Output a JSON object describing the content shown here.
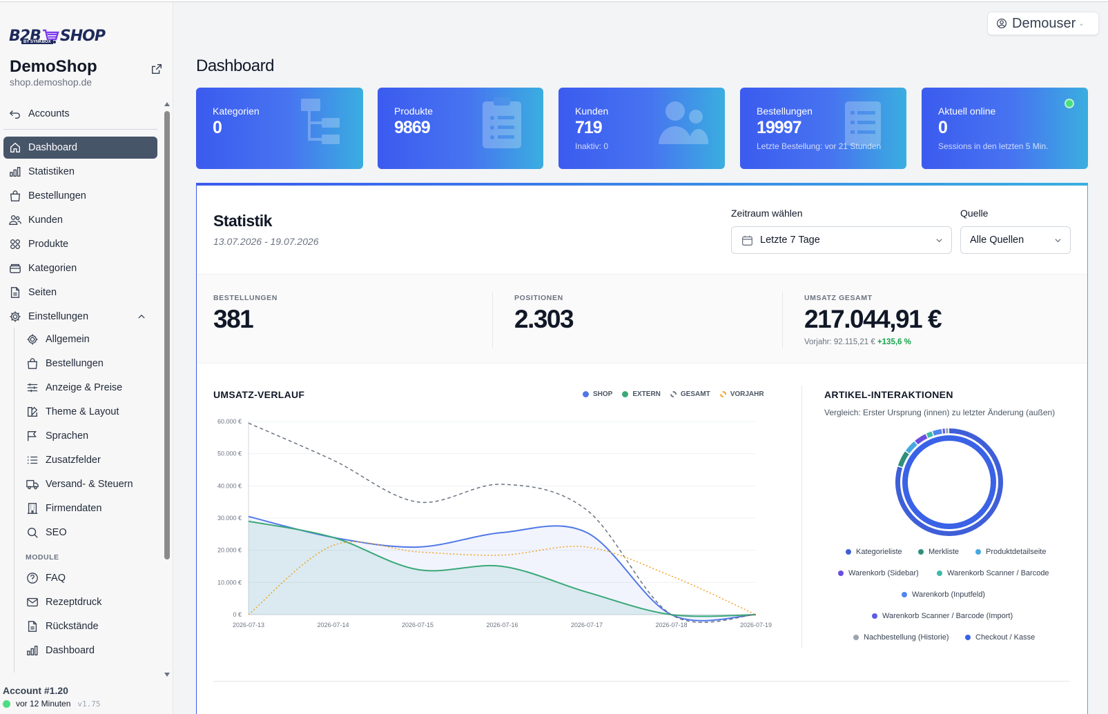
{
  "brand": {
    "logo_left": "B2B",
    "logo_right": "SHOP",
    "logo_sub": "BY SYNKBOX"
  },
  "shop": {
    "name": "DemoShop",
    "url": "shop.demoshop.de"
  },
  "sidebar": {
    "accounts": "Accounts",
    "items": [
      {
        "label": "Dashboard",
        "icon": "home-icon"
      },
      {
        "label": "Statistiken",
        "icon": "bar-chart-icon"
      },
      {
        "label": "Bestellungen",
        "icon": "shopping-bag-icon"
      },
      {
        "label": "Kunden",
        "icon": "users-icon"
      },
      {
        "label": "Produkte",
        "icon": "grid-icon"
      },
      {
        "label": "Kategorien",
        "icon": "folder-icon"
      },
      {
        "label": "Seiten",
        "icon": "document-icon"
      },
      {
        "label": "Einstellungen",
        "icon": "cog-icon"
      }
    ],
    "sub_items": [
      {
        "label": "Allgemein",
        "icon": "cog-icon"
      },
      {
        "label": "Bestellungen",
        "icon": "shopping-bag-icon"
      },
      {
        "label": "Anzeige & Preise",
        "icon": "sliders-icon"
      },
      {
        "label": "Theme & Layout",
        "icon": "palette-icon"
      },
      {
        "label": "Sprachen",
        "icon": "flag-icon"
      },
      {
        "label": "Zusatzfelder",
        "icon": "list-icon"
      },
      {
        "label": "Versand- & Steuern",
        "icon": "truck-icon"
      },
      {
        "label": "Firmendaten",
        "icon": "building-icon"
      },
      {
        "label": "SEO",
        "icon": "search-icon"
      }
    ],
    "module_label": "MODULE",
    "module_items": [
      {
        "label": "FAQ",
        "icon": "question-icon"
      },
      {
        "label": "Rezeptdruck",
        "icon": "mail-icon"
      },
      {
        "label": "Rückstände",
        "icon": "document-icon"
      },
      {
        "label": "Dashboard",
        "icon": "bar-chart-icon"
      }
    ],
    "account": "Account #1.20",
    "account_status": "vor 12 Minuten",
    "version": "v1.75"
  },
  "header": {
    "user": "Demouser",
    "page_title": "Dashboard"
  },
  "kpis": [
    {
      "label": "Kategorien",
      "value": "0",
      "sub": "",
      "icon": "hierarchy-icon"
    },
    {
      "label": "Produkte",
      "value": "9869",
      "sub": "",
      "icon": "clipboard-icon"
    },
    {
      "label": "Kunden",
      "value": "719",
      "sub": "Inaktiv: 0",
      "icon": "users-icon"
    },
    {
      "label": "Bestellungen",
      "value": "19997",
      "sub": "Letzte Bestellung: vor 21 Stunden",
      "icon": "list-icon"
    },
    {
      "label": "Aktuell online",
      "value": "0",
      "sub": "Sessions in den letzten 5 Min.",
      "icon": "online-dot"
    }
  ],
  "statistik": {
    "title": "Statistik",
    "range": "13.07.2026 - 19.07.2026",
    "zeitraum_label": "Zeitraum wählen",
    "zeitraum_value": "Letzte 7 Tage",
    "quelle_label": "Quelle",
    "quelle_value": "Alle Quellen"
  },
  "metrics": [
    {
      "label": "BESTELLUNGEN",
      "value": "381"
    },
    {
      "label": "POSITIONEN",
      "value": "2.303"
    },
    {
      "label": "UMSATZ GESAMT",
      "value": "217.044,91 €",
      "sub_prefix": "Vorjahr: 92.115,21 €",
      "sub_change": "+135,6 %"
    }
  ],
  "umsatz_chart": {
    "title": "UMSATZ-VERLAUF",
    "legend": [
      {
        "name": "SHOP",
        "color": "#4f77e8"
      },
      {
        "name": "EXTERN",
        "color": "#3aa877"
      },
      {
        "name": "GESAMT",
        "color": "#6b7280"
      },
      {
        "name": "VORJAHR",
        "color": "#f0a020"
      }
    ]
  },
  "donut_chart": {
    "title": "ARTIKEL-INTERAKTIONEN",
    "subtitle": "Vergleich: Erster Ursprung (innen) zu letzter Änderung (außen)",
    "legend": [
      {
        "name": "Kategorieliste",
        "color": "#3f5fd8"
      },
      {
        "name": "Merkliste",
        "color": "#2e8f7a"
      },
      {
        "name": "Produktdetailseite",
        "color": "#45a8e0"
      },
      {
        "name": "Warenkorb (Sidebar)",
        "color": "#6a4ee0"
      },
      {
        "name": "Warenkorb Scanner / Barcode",
        "color": "#3fb9a8"
      },
      {
        "name": "Warenkorb (Inputfeld)",
        "color": "#4f86ee"
      },
      {
        "name": "Warenkorb Scanner / Barcode (Import)",
        "color": "#5b5ce6"
      },
      {
        "name": "Nachbestellung (Historie)",
        "color": "#9ca3af"
      },
      {
        "name": "Checkout / Kasse",
        "color": "#3a62e6"
      }
    ]
  },
  "chart_data": [
    {
      "type": "line",
      "title": "UMSATZ-VERLAUF",
      "x": [
        "2026-07-13",
        "2026-07-14",
        "2026-07-15",
        "2026-07-16",
        "2026-07-17",
        "2026-07-18",
        "2026-07-19"
      ],
      "yticks": [
        "0 €",
        "10.000 €",
        "20.000 €",
        "30.000 €",
        "40.000 €",
        "50.000 €",
        "60.000 €"
      ],
      "ylim": [
        0,
        60000
      ],
      "series": [
        {
          "name": "SHOP",
          "values": [
            30500,
            24000,
            21000,
            25500,
            25500,
            0,
            0
          ]
        },
        {
          "name": "EXTERN",
          "values": [
            29000,
            24000,
            14000,
            15000,
            7000,
            0,
            0
          ]
        },
        {
          "name": "GESAMT",
          "values": [
            59500,
            48000,
            35000,
            40500,
            32500,
            0,
            0
          ]
        },
        {
          "name": "VORJAHR",
          "values": [
            0,
            21500,
            19500,
            18500,
            21000,
            12000,
            0
          ]
        }
      ]
    },
    {
      "type": "pie",
      "title": "ARTIKEL-INTERAKTIONEN",
      "rings": [
        {
          "name": "innen",
          "slices": [
            {
              "label": "Checkout / Kasse",
              "value": 1.0
            }
          ]
        },
        {
          "name": "außen",
          "slices": [
            {
              "label": "Kategorieliste",
              "value": 0.8
            },
            {
              "label": "Merkliste",
              "value": 0.05
            },
            {
              "label": "Produktdetailseite",
              "value": 0.04
            },
            {
              "label": "Warenkorb (Sidebar)",
              "value": 0.04
            },
            {
              "label": "Warenkorb Scanner / Barcode",
              "value": 0.02
            },
            {
              "label": "Warenkorb (Inputfeld)",
              "value": 0.03
            },
            {
              "label": "Warenkorb Scanner / Barcode (Import)",
              "value": 0.01
            },
            {
              "label": "Nachbestellung (Historie)",
              "value": 0.01
            }
          ]
        }
      ]
    }
  ]
}
